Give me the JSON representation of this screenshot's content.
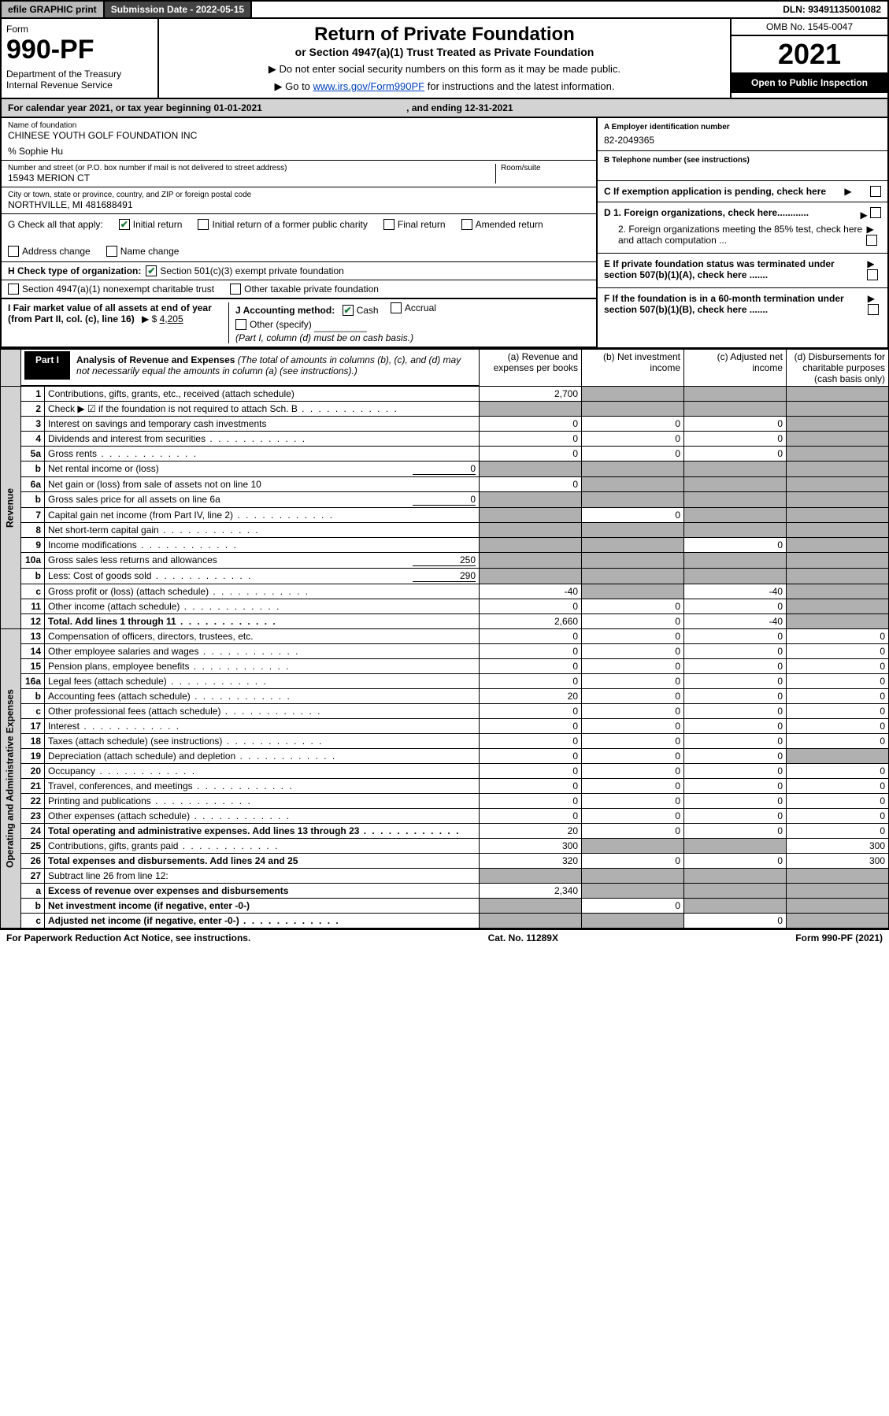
{
  "top": {
    "efile": "efile GRAPHIC print",
    "sub_label": "Submission Date - 2022-05-15",
    "dln": "DLN: 93491135001082"
  },
  "head": {
    "form_word": "Form",
    "form_no": "990-PF",
    "dept": "Department of the Treasury\nInternal Revenue Service",
    "title": "Return of Private Foundation",
    "subtitle": "or Section 4947(a)(1) Trust Treated as Private Foundation",
    "note1": "▶ Do not enter social security numbers on this form as it may be made public.",
    "note2_pre": "▶ Go to ",
    "note2_link": "www.irs.gov/Form990PF",
    "note2_post": " for instructions and the latest information.",
    "omb": "OMB No. 1545-0047",
    "year": "2021",
    "open": "Open to Public Inspection"
  },
  "cal": {
    "text": "For calendar year 2021, or tax year beginning 01-01-2021",
    "end": ", and ending 12-31-2021"
  },
  "info": {
    "name_lbl": "Name of foundation",
    "name": "CHINESE YOUTH GOLF FOUNDATION INC",
    "care": "% Sophie Hu",
    "addr_lbl": "Number and street (or P.O. box number if mail is not delivered to street address)",
    "addr": "15943 MERION CT",
    "room_lbl": "Room/suite",
    "city_lbl": "City or town, state or province, country, and ZIP or foreign postal code",
    "city": "NORTHVILLE, MI  481688491",
    "a_lbl": "A Employer identification number",
    "a_val": "82-2049365",
    "b_lbl": "B Telephone number (see instructions)",
    "c_lbl": "C If exemption application is pending, check here",
    "d1": "D 1. Foreign organizations, check here............",
    "d2": "2. Foreign organizations meeting the 85% test, check here and attach computation ...",
    "e_lbl": "E  If private foundation status was terminated under section 507(b)(1)(A), check here .......",
    "f_lbl": "F  If the foundation is in a 60-month termination under section 507(b)(1)(B), check here .......",
    "g_lbl": "G Check all that apply:",
    "g_opts": [
      "Initial return",
      "Initial return of a former public charity",
      "Final return",
      "Amended return",
      "Address change",
      "Name change"
    ],
    "h_lbl": "H Check type of organization:",
    "h_opts": [
      "Section 501(c)(3) exempt private foundation",
      "Section 4947(a)(1) nonexempt charitable trust",
      "Other taxable private foundation"
    ],
    "i_lbl": "I Fair market value of all assets at end of year (from Part II, col. (c), line 16)",
    "i_val": "4,205",
    "j_lbl": "J Accounting method:",
    "j_opts": [
      "Cash",
      "Accrual"
    ],
    "j_other": "Other (specify)",
    "j_note": "(Part I, column (d) must be on cash basis.)"
  },
  "part1": {
    "label": "Part I",
    "title": "Analysis of Revenue and Expenses",
    "title_note": "(The total of amounts in columns (b), (c), and (d) may not necessarily equal the amounts in column (a) (see instructions).)",
    "cols": [
      "(a)  Revenue and expenses per books",
      "(b)  Net investment income",
      "(c)  Adjusted net income",
      "(d)  Disbursements for charitable purposes (cash basis only)"
    ],
    "vlabels": [
      "Revenue",
      "Operating and Administrative Expenses"
    ],
    "rows": [
      {
        "n": "1",
        "d": "Contributions, gifts, grants, etc., received (attach schedule)",
        "a": "2,700",
        "sb": true,
        "sc": true,
        "sd": true
      },
      {
        "n": "2",
        "d": "Check ▶ ☑ if the foundation is not required to attach Sch. B",
        "dots": true,
        "sa": true,
        "sb": true,
        "sc": true,
        "sd": true
      },
      {
        "n": "3",
        "d": "Interest on savings and temporary cash investments",
        "a": "0",
        "b": "0",
        "c": "0",
        "sd": true
      },
      {
        "n": "4",
        "d": "Dividends and interest from securities",
        "dots": true,
        "a": "0",
        "b": "0",
        "c": "0",
        "sd": true
      },
      {
        "n": "5a",
        "d": "Gross rents",
        "dots": true,
        "a": "0",
        "b": "0",
        "c": "0",
        "sd": true
      },
      {
        "n": "b",
        "d": "Net rental income or (loss)",
        "inline": "0",
        "sa": true,
        "sb": true,
        "sc": true,
        "sd": true
      },
      {
        "n": "6a",
        "d": "Net gain or (loss) from sale of assets not on line 10",
        "a": "0",
        "sb": true,
        "sc": true,
        "sd": true
      },
      {
        "n": "b",
        "d": "Gross sales price for all assets on line 6a",
        "inline": "0",
        "sa": true,
        "sb": true,
        "sc": true,
        "sd": true
      },
      {
        "n": "7",
        "d": "Capital gain net income (from Part IV, line 2)",
        "dots": true,
        "sa": true,
        "b": "0",
        "sc": true,
        "sd": true
      },
      {
        "n": "8",
        "d": "Net short-term capital gain",
        "dots": true,
        "sa": true,
        "sb": true,
        "sc": true,
        "sd": true
      },
      {
        "n": "9",
        "d": "Income modifications",
        "dots": true,
        "sa": true,
        "sb": true,
        "c": "0",
        "sd": true
      },
      {
        "n": "10a",
        "d": "Gross sales less returns and allowances",
        "inline": "250",
        "sa": true,
        "sb": true,
        "sc": true,
        "sd": true
      },
      {
        "n": "b",
        "d": "Less: Cost of goods sold",
        "dots": true,
        "inline": "290",
        "sa": true,
        "sb": true,
        "sc": true,
        "sd": true
      },
      {
        "n": "c",
        "d": "Gross profit or (loss) (attach schedule)",
        "dots": true,
        "a": "-40",
        "sb": true,
        "c": "-40",
        "sd": true
      },
      {
        "n": "11",
        "d": "Other income (attach schedule)",
        "dots": true,
        "a": "0",
        "b": "0",
        "c": "0",
        "sd": true
      },
      {
        "n": "12",
        "d": "Total. Add lines 1 through 11",
        "dots": true,
        "bold": true,
        "a": "2,660",
        "b": "0",
        "c": "-40",
        "sd": true
      },
      {
        "n": "13",
        "d": "Compensation of officers, directors, trustees, etc.",
        "a": "0",
        "b": "0",
        "c": "0",
        "dd": "0"
      },
      {
        "n": "14",
        "d": "Other employee salaries and wages",
        "dots": true,
        "a": "0",
        "b": "0",
        "c": "0",
        "dd": "0"
      },
      {
        "n": "15",
        "d": "Pension plans, employee benefits",
        "dots": true,
        "a": "0",
        "b": "0",
        "c": "0",
        "dd": "0"
      },
      {
        "n": "16a",
        "d": "Legal fees (attach schedule)",
        "dots": true,
        "a": "0",
        "b": "0",
        "c": "0",
        "dd": "0"
      },
      {
        "n": "b",
        "d": "Accounting fees (attach schedule)",
        "dots": true,
        "a": "20",
        "b": "0",
        "c": "0",
        "dd": "0"
      },
      {
        "n": "c",
        "d": "Other professional fees (attach schedule)",
        "dots": true,
        "a": "0",
        "b": "0",
        "c": "0",
        "dd": "0"
      },
      {
        "n": "17",
        "d": "Interest",
        "dots": true,
        "a": "0",
        "b": "0",
        "c": "0",
        "dd": "0"
      },
      {
        "n": "18",
        "d": "Taxes (attach schedule) (see instructions)",
        "dots": true,
        "a": "0",
        "b": "0",
        "c": "0",
        "dd": "0"
      },
      {
        "n": "19",
        "d": "Depreciation (attach schedule) and depletion",
        "dots": true,
        "a": "0",
        "b": "0",
        "c": "0",
        "sd": true
      },
      {
        "n": "20",
        "d": "Occupancy",
        "dots": true,
        "a": "0",
        "b": "0",
        "c": "0",
        "dd": "0"
      },
      {
        "n": "21",
        "d": "Travel, conferences, and meetings",
        "dots": true,
        "a": "0",
        "b": "0",
        "c": "0",
        "dd": "0"
      },
      {
        "n": "22",
        "d": "Printing and publications",
        "dots": true,
        "a": "0",
        "b": "0",
        "c": "0",
        "dd": "0"
      },
      {
        "n": "23",
        "d": "Other expenses (attach schedule)",
        "dots": true,
        "a": "0",
        "b": "0",
        "c": "0",
        "dd": "0"
      },
      {
        "n": "24",
        "d": "Total operating and administrative expenses. Add lines 13 through 23",
        "dots": true,
        "bold": true,
        "a": "20",
        "b": "0",
        "c": "0",
        "dd": "0"
      },
      {
        "n": "25",
        "d": "Contributions, gifts, grants paid",
        "dots": true,
        "a": "300",
        "sb": true,
        "sc": true,
        "dd": "300"
      },
      {
        "n": "26",
        "d": "Total expenses and disbursements. Add lines 24 and 25",
        "bold": true,
        "a": "320",
        "b": "0",
        "c": "0",
        "dd": "300"
      },
      {
        "n": "27",
        "d": "Subtract line 26 from line 12:",
        "sa": true,
        "sb": true,
        "sc": true,
        "sd": true
      },
      {
        "n": "a",
        "d": "Excess of revenue over expenses and disbursements",
        "bold": true,
        "a": "2,340",
        "sb": true,
        "sc": true,
        "sd": true
      },
      {
        "n": "b",
        "d": "Net investment income (if negative, enter -0-)",
        "bold": true,
        "sa": true,
        "b": "0",
        "sc": true,
        "sd": true
      },
      {
        "n": "c",
        "d": "Adjusted net income (if negative, enter -0-)",
        "dots": true,
        "bold": true,
        "sa": true,
        "sb": true,
        "c": "0",
        "sd": true
      }
    ]
  },
  "foot": {
    "l": "For Paperwork Reduction Act Notice, see instructions.",
    "m": "Cat. No. 11289X",
    "r": "Form 990-PF (2021)"
  }
}
